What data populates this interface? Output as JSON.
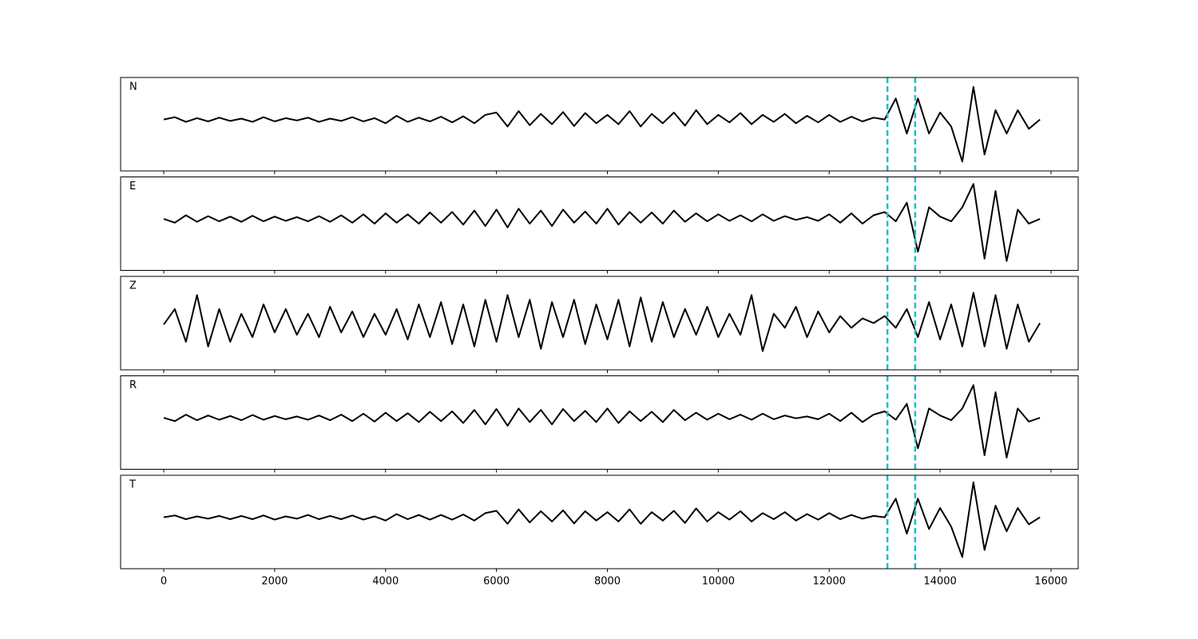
{
  "chart_data": {
    "type": "line",
    "x": [
      0,
      200,
      400,
      600,
      800,
      1000,
      1200,
      1400,
      1600,
      1800,
      2000,
      2200,
      2400,
      2600,
      2800,
      3000,
      3200,
      3400,
      3600,
      3800,
      4000,
      4200,
      4400,
      4600,
      4800,
      5000,
      5200,
      5400,
      5600,
      5800,
      6000,
      6200,
      6400,
      6600,
      6800,
      7000,
      7200,
      7400,
      7600,
      7800,
      8000,
      8200,
      8400,
      8600,
      8800,
      9000,
      9200,
      9400,
      9600,
      9800,
      10000,
      10200,
      10400,
      10600,
      10800,
      11000,
      11200,
      11400,
      11600,
      11800,
      12000,
      12200,
      12400,
      12600,
      12800,
      13000,
      13200,
      13400,
      13600,
      13800,
      14000,
      14200,
      14400,
      14600,
      14800,
      15000,
      15200,
      15400,
      15600,
      15800
    ],
    "series": [
      {
        "name": "N",
        "color": "#000000",
        "values": [
          0.1,
          0.15,
          0.05,
          0.13,
          0.06,
          0.14,
          0.07,
          0.12,
          0.05,
          0.15,
          0.06,
          0.13,
          0.08,
          0.14,
          0.05,
          0.12,
          0.07,
          0.15,
          0.06,
          0.13,
          0.02,
          0.18,
          0.05,
          0.14,
          0.06,
          0.16,
          0.04,
          0.17,
          0.02,
          0.2,
          0.25,
          -0.05,
          0.28,
          -0.02,
          0.22,
          0.0,
          0.26,
          -0.04,
          0.24,
          0.02,
          0.2,
          0.0,
          0.28,
          -0.05,
          0.22,
          0.02,
          0.25,
          -0.03,
          0.3,
          0.0,
          0.2,
          0.04,
          0.24,
          0.0,
          0.2,
          0.05,
          0.22,
          0.02,
          0.18,
          0.04,
          0.2,
          0.05,
          0.16,
          0.06,
          0.14,
          0.1,
          0.55,
          -0.2,
          0.55,
          -0.2,
          0.25,
          -0.05,
          -0.8,
          0.8,
          -0.65,
          0.3,
          -0.2,
          0.3,
          -0.1,
          0.1
        ]
      },
      {
        "name": "E",
        "color": "#000000",
        "values": [
          0.1,
          0.02,
          0.18,
          0.04,
          0.16,
          0.05,
          0.15,
          0.04,
          0.17,
          0.05,
          0.15,
          0.06,
          0.14,
          0.05,
          0.16,
          0.04,
          0.18,
          0.02,
          0.2,
          0.0,
          0.22,
          0.02,
          0.2,
          0.0,
          0.24,
          0.02,
          0.25,
          -0.02,
          0.28,
          -0.05,
          0.3,
          -0.08,
          0.32,
          0.0,
          0.28,
          -0.05,
          0.3,
          0.02,
          0.26,
          0.0,
          0.32,
          -0.02,
          0.25,
          0.02,
          0.24,
          0.0,
          0.28,
          0.04,
          0.22,
          0.05,
          0.2,
          0.06,
          0.18,
          0.05,
          0.2,
          0.06,
          0.16,
          0.08,
          0.14,
          0.06,
          0.2,
          0.02,
          0.22,
          0.0,
          0.18,
          0.25,
          0.05,
          0.45,
          -0.6,
          0.35,
          0.15,
          0.05,
          0.35,
          0.85,
          -0.75,
          0.7,
          -0.8,
          0.3,
          0.0,
          0.1
        ]
      },
      {
        "name": "Z",
        "color": "#000000",
        "values": [
          -0.03,
          0.3,
          -0.4,
          0.6,
          -0.5,
          0.3,
          -0.4,
          0.2,
          -0.3,
          0.4,
          -0.2,
          0.3,
          -0.25,
          0.2,
          -0.3,
          0.35,
          -0.2,
          0.25,
          -0.3,
          0.2,
          -0.25,
          0.3,
          -0.35,
          0.4,
          -0.3,
          0.45,
          -0.45,
          0.4,
          -0.5,
          0.5,
          -0.4,
          0.6,
          -0.3,
          0.5,
          -0.55,
          0.45,
          -0.3,
          0.5,
          -0.45,
          0.4,
          -0.35,
          0.5,
          -0.5,
          0.55,
          -0.4,
          0.45,
          -0.3,
          0.3,
          -0.25,
          0.35,
          -0.3,
          0.2,
          -0.25,
          0.6,
          -0.6,
          0.2,
          -0.1,
          0.35,
          -0.3,
          0.25,
          -0.2,
          0.15,
          -0.1,
          0.1,
          0.0,
          0.15,
          -0.1,
          0.3,
          -0.3,
          0.45,
          -0.35,
          0.4,
          -0.5,
          0.65,
          -0.5,
          0.6,
          -0.55,
          0.4,
          -0.4,
          0.0
        ]
      },
      {
        "name": "R",
        "color": "#000000",
        "values": [
          0.1,
          0.03,
          0.17,
          0.05,
          0.15,
          0.06,
          0.14,
          0.05,
          0.16,
          0.06,
          0.14,
          0.07,
          0.13,
          0.06,
          0.15,
          0.05,
          0.17,
          0.03,
          0.19,
          0.02,
          0.21,
          0.03,
          0.2,
          0.01,
          0.23,
          0.03,
          0.24,
          -0.01,
          0.27,
          -0.04,
          0.29,
          -0.07,
          0.3,
          0.01,
          0.27,
          -0.04,
          0.29,
          0.03,
          0.25,
          0.01,
          0.3,
          -0.01,
          0.24,
          0.03,
          0.23,
          0.01,
          0.27,
          0.05,
          0.21,
          0.06,
          0.19,
          0.07,
          0.17,
          0.06,
          0.19,
          0.07,
          0.15,
          0.09,
          0.13,
          0.07,
          0.19,
          0.03,
          0.21,
          0.01,
          0.17,
          0.24,
          0.06,
          0.4,
          -0.55,
          0.3,
          0.15,
          0.05,
          0.3,
          0.8,
          -0.7,
          0.65,
          -0.75,
          0.3,
          0.02,
          0.1
        ]
      },
      {
        "name": "T",
        "color": "#000000",
        "values": [
          0.1,
          0.14,
          0.06,
          0.12,
          0.07,
          0.13,
          0.06,
          0.13,
          0.06,
          0.14,
          0.05,
          0.12,
          0.07,
          0.15,
          0.06,
          0.13,
          0.06,
          0.14,
          0.05,
          0.12,
          0.03,
          0.17,
          0.06,
          0.15,
          0.05,
          0.15,
          0.05,
          0.16,
          0.03,
          0.19,
          0.24,
          -0.04,
          0.27,
          -0.01,
          0.23,
          0.01,
          0.25,
          -0.03,
          0.23,
          0.03,
          0.21,
          0.01,
          0.27,
          -0.04,
          0.21,
          0.03,
          0.24,
          -0.02,
          0.29,
          0.01,
          0.21,
          0.05,
          0.23,
          0.01,
          0.19,
          0.06,
          0.21,
          0.03,
          0.17,
          0.05,
          0.19,
          0.06,
          0.15,
          0.07,
          0.13,
          0.1,
          0.5,
          -0.25,
          0.5,
          -0.15,
          0.3,
          -0.1,
          -0.75,
          0.85,
          -0.6,
          0.35,
          -0.2,
          0.3,
          -0.05,
          0.1
        ]
      }
    ],
    "vlines": [
      13050,
      13550
    ],
    "vline_color": "#17becf",
    "xlim": [
      -778,
      16490
    ],
    "ylim": [
      -1,
      1
    ],
    "xticks": [
      0,
      2000,
      4000,
      6000,
      8000,
      10000,
      12000,
      14000,
      16000
    ]
  }
}
